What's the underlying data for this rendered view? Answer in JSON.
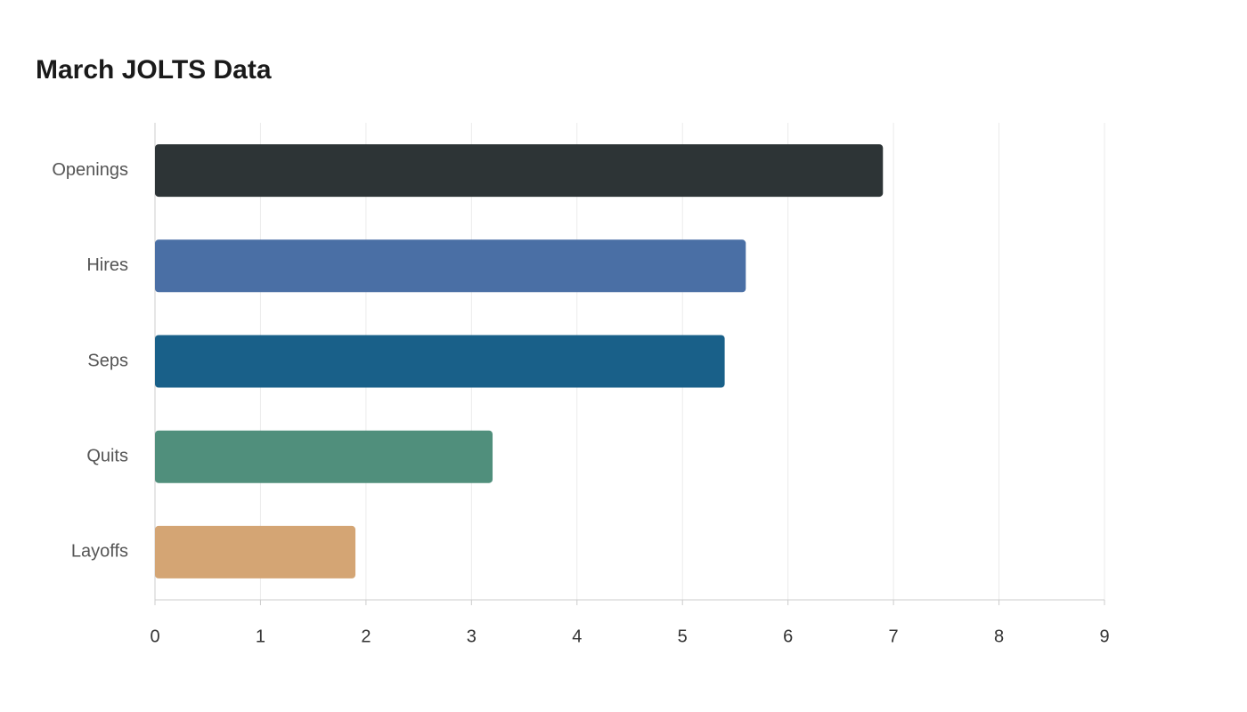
{
  "chart_data": {
    "type": "bar",
    "orientation": "horizontal",
    "title": "March JOLTS Data",
    "categories": [
      "Openings",
      "Hires",
      "Seps",
      "Quits",
      "Layoffs"
    ],
    "values": [
      6.9,
      5.6,
      5.4,
      3.2,
      1.9
    ],
    "colors": [
      "#2d3436",
      "#4a6fa5",
      "#196089",
      "#508f7c",
      "#d4a574"
    ],
    "xlim": [
      0,
      9
    ],
    "xticks": [
      0,
      1,
      2,
      3,
      4,
      5,
      6,
      7,
      8,
      9
    ],
    "grid": true
  }
}
